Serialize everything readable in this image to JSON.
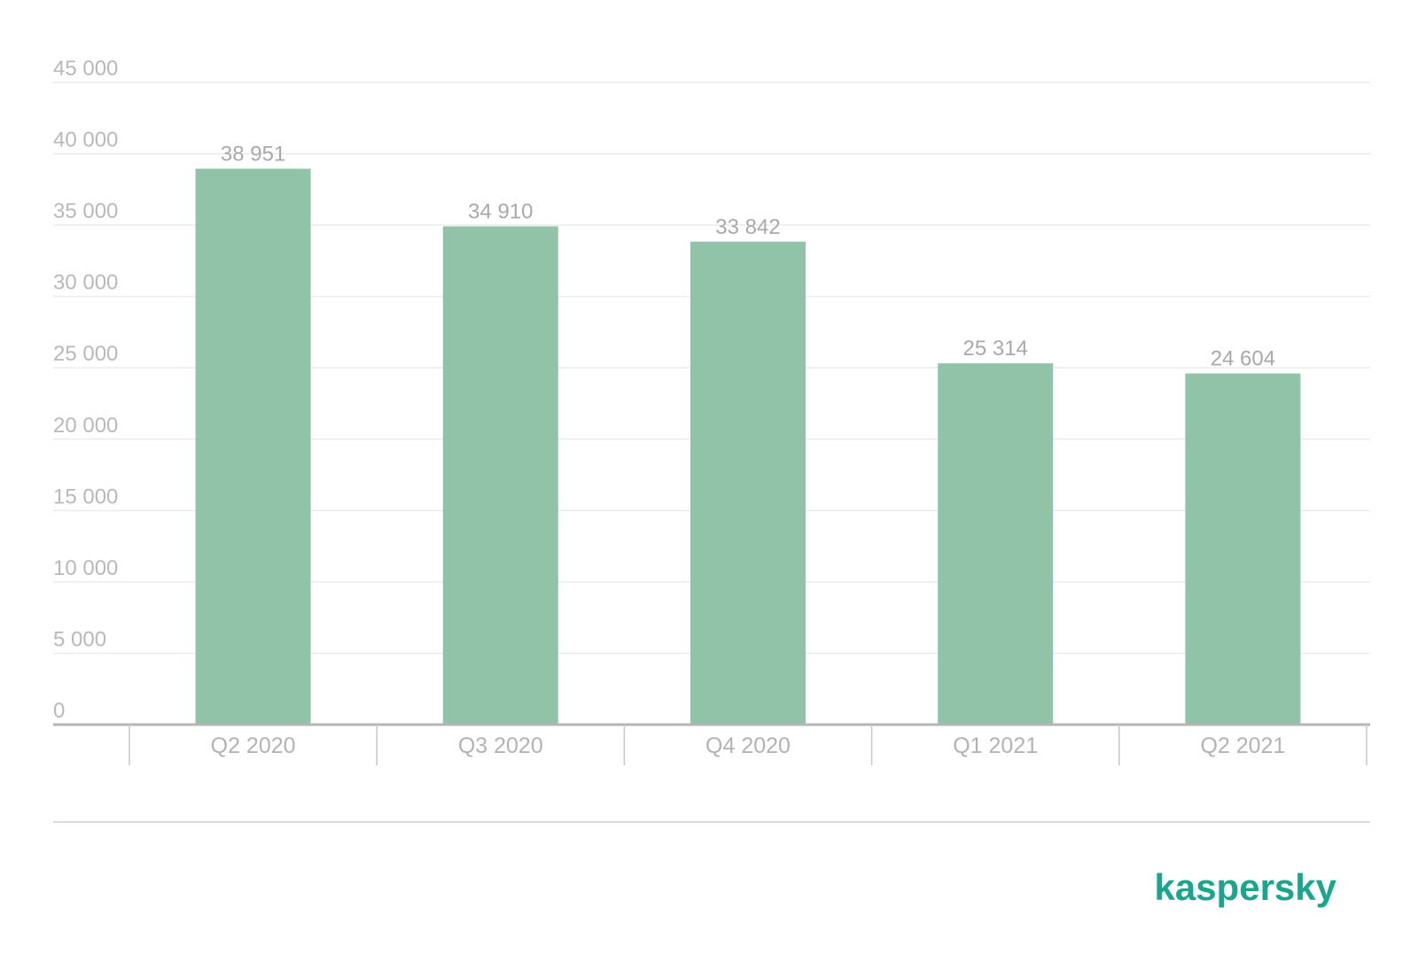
{
  "chart_data": {
    "type": "bar",
    "categories": [
      "Q2 2020",
      "Q3 2020",
      "Q4 2020",
      "Q1 2021",
      "Q2 2021"
    ],
    "values": [
      38951,
      34910,
      33842,
      25314,
      24604
    ],
    "value_labels": [
      "38 951",
      "34 910",
      "33 842",
      "25 314",
      "24 604"
    ],
    "y_ticks": [
      0,
      5000,
      10000,
      15000,
      20000,
      25000,
      30000,
      35000,
      40000,
      45000
    ],
    "y_tick_labels": [
      "0",
      "5 000",
      "10 000",
      "15 000",
      "20 000",
      "25 000",
      "30 000",
      "35 000",
      "40 000",
      "45 000"
    ],
    "ylim": [
      0,
      45000
    ],
    "title": "",
    "xlabel": "",
    "ylabel": "",
    "grid": true,
    "legend": "none",
    "bar_color": "#90c3a7"
  },
  "brand": {
    "name": "kaspersky",
    "color": "#1aa58c"
  }
}
